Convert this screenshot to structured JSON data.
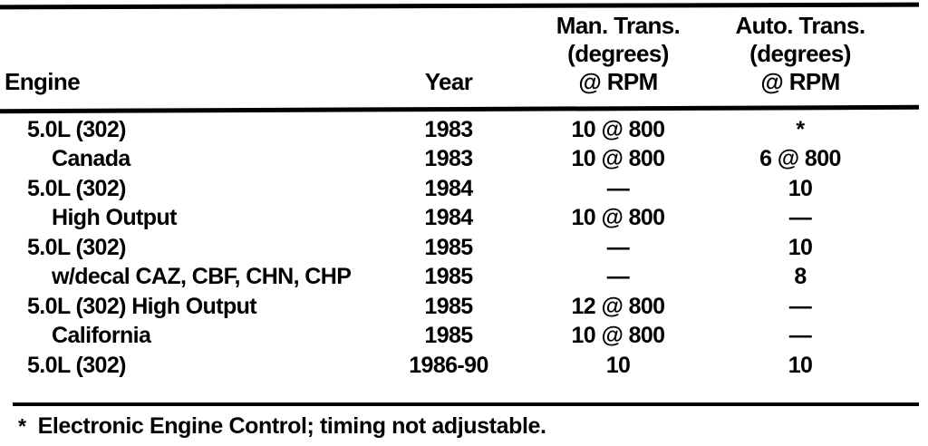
{
  "table": {
    "headers": {
      "engine": "Engine",
      "year": "Year",
      "man_trans_lines": [
        "Man. Trans.",
        "(degrees)",
        "@ RPM"
      ],
      "auto_trans_lines": [
        "Auto. Trans.",
        "(degrees)",
        "@ RPM"
      ]
    },
    "rows": [
      {
        "engine": "5.0L (302)",
        "indent": false,
        "year": "1983",
        "man": "10 @ 800",
        "auto": "*"
      },
      {
        "engine": "Canada",
        "indent": true,
        "year": "1983",
        "man": "10 @ 800",
        "auto": "6 @ 800"
      },
      {
        "engine": "5.0L (302)",
        "indent": false,
        "year": "1984",
        "man": "—",
        "auto": "10"
      },
      {
        "engine": "High Output",
        "indent": true,
        "year": "1984",
        "man": "10 @ 800",
        "auto": "—"
      },
      {
        "engine": "5.0L (302)",
        "indent": false,
        "year": "1985",
        "man": "—",
        "auto": "10"
      },
      {
        "engine": "w/decal CAZ, CBF, CHN, CHP",
        "indent": true,
        "year": "1985",
        "man": "—",
        "auto": "8"
      },
      {
        "engine": "5.0L (302) High Output",
        "indent": false,
        "year": "1985",
        "man": "12 @ 800",
        "auto": "—"
      },
      {
        "engine": "California",
        "indent": true,
        "year": "1985",
        "man": "10 @ 800",
        "auto": "—"
      },
      {
        "engine": "5.0L (302)",
        "indent": false,
        "year": "1986-90",
        "man": "10",
        "auto": "10"
      }
    ],
    "footnote": {
      "marker": "*",
      "text": "Electronic Engine Control; timing not adjustable."
    }
  }
}
